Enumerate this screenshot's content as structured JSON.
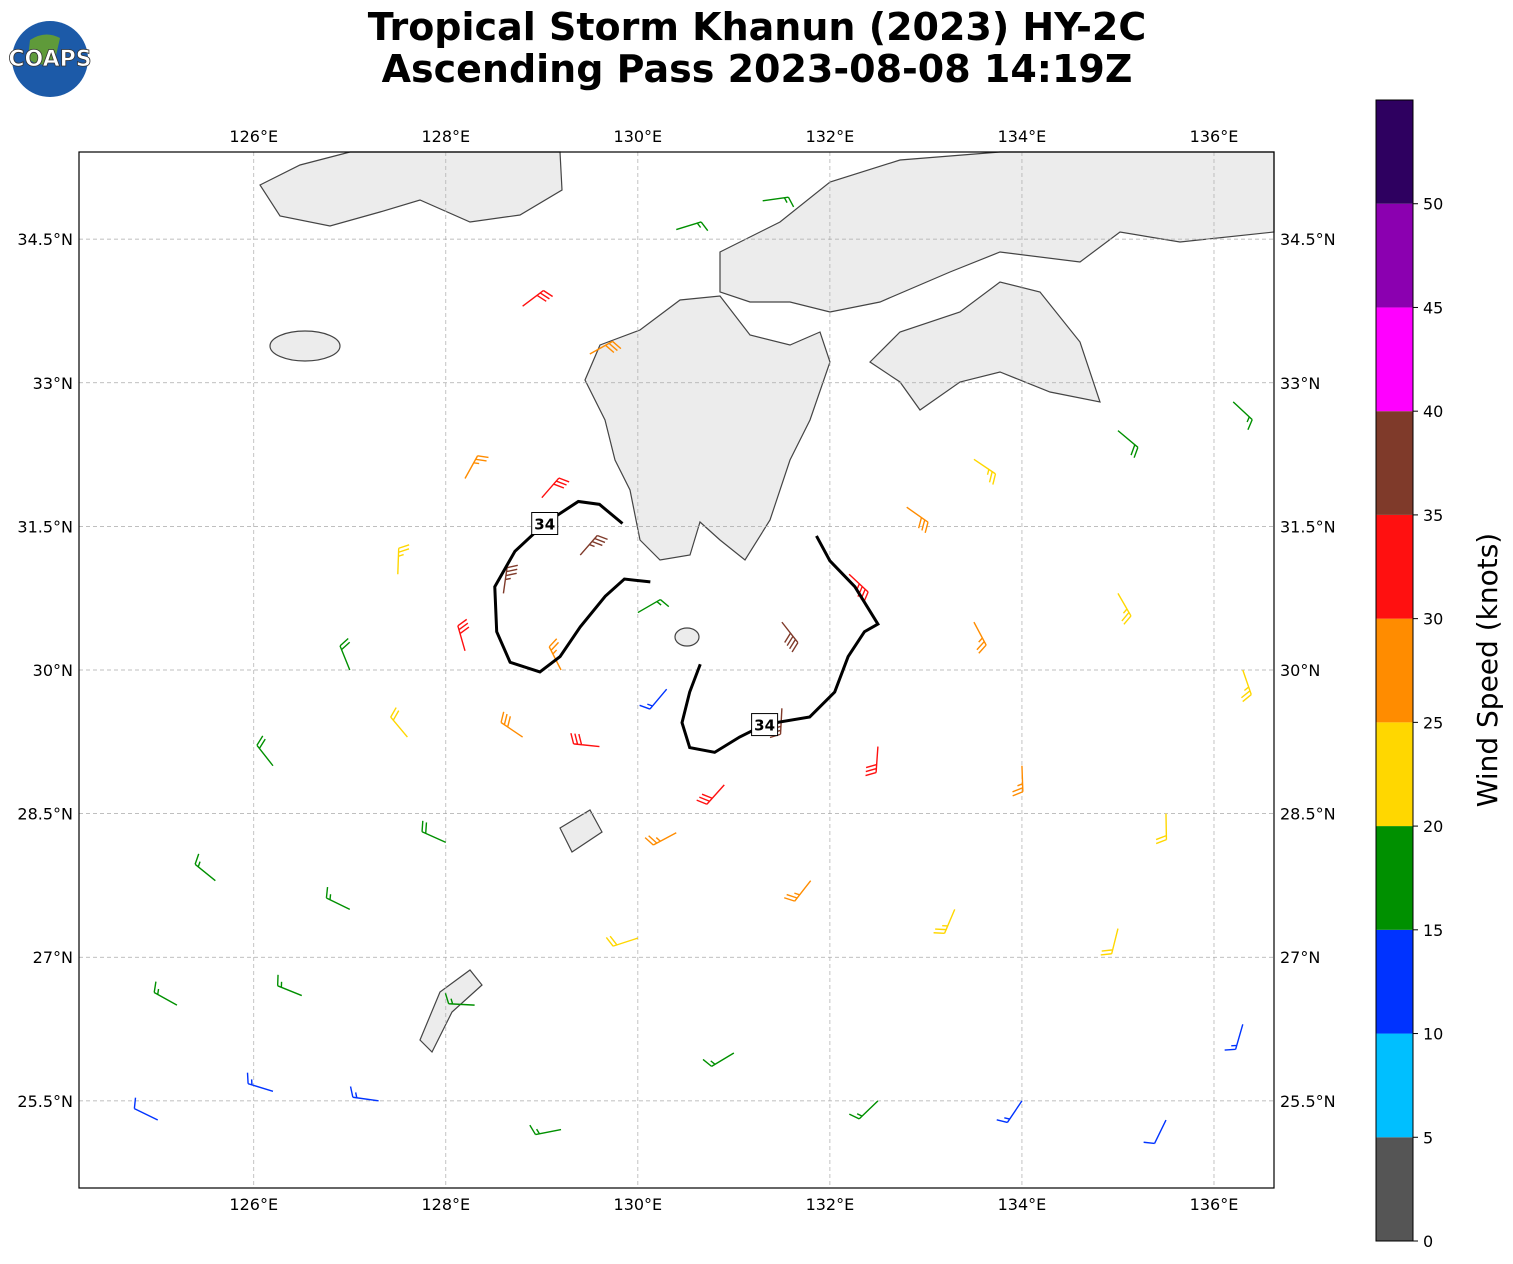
{
  "logo_text": "COAPS",
  "title": [
    "Tropical Storm Khanun (2023) HY-2C",
    "Ascending Pass 2023-08-08 14:19Z"
  ],
  "map": {
    "xlim": [
      124.18,
      136.625
    ],
    "ylim": [
      24.59,
      35.41
    ],
    "xticks": [
      {
        "value": 126,
        "label": "126°E"
      },
      {
        "value": 128,
        "label": "128°E"
      },
      {
        "value": 130,
        "label": "130°E"
      },
      {
        "value": 132,
        "label": "132°E"
      },
      {
        "value": 134,
        "label": "134°E"
      },
      {
        "value": 136,
        "label": "136°E"
      }
    ],
    "yticks": [
      {
        "value": 25.5,
        "label": "25.5°N"
      },
      {
        "value": 27,
        "label": "27°N"
      },
      {
        "value": 28.5,
        "label": "28.5°N"
      },
      {
        "value": 30,
        "label": "30°N"
      },
      {
        "value": 31.5,
        "label": "31.5°N"
      },
      {
        "value": 33,
        "label": "33°N"
      },
      {
        "value": 34.5,
        "label": "34.5°N"
      }
    ],
    "grid": true,
    "barbs": {
      "lon": [
        128.8,
        129.5,
        130.4,
        131.3,
        128.2,
        129.0,
        127.5,
        128.6,
        129.4,
        127.0,
        128.2,
        129.2,
        126.2,
        127.6,
        128.8,
        129.6,
        125.6,
        127.0,
        128.0,
        125.2,
        126.5,
        125.0,
        126.2,
        127.3,
        128.3,
        129.2,
        130.0,
        130.4,
        130.9,
        131.5,
        131.5,
        132.2,
        132.8,
        133.5,
        135.0,
        136.2,
        133.5,
        135.0,
        136.3,
        132.5,
        134.0,
        135.5,
        131.8,
        133.3,
        135.0,
        131.0,
        132.5,
        134.0,
        135.5,
        136.3,
        130.0,
        130.3
      ],
      "lat": [
        33.8,
        33.3,
        34.6,
        34.9,
        32.0,
        31.8,
        31.0,
        30.8,
        31.2,
        30.0,
        30.2,
        30.0,
        29.0,
        29.3,
        29.3,
        29.2,
        27.8,
        27.5,
        28.2,
        26.5,
        26.6,
        25.3,
        25.6,
        25.5,
        26.5,
        25.2,
        27.2,
        28.3,
        28.8,
        29.6,
        30.5,
        31.0,
        31.7,
        32.2,
        32.5,
        32.8,
        30.5,
        30.8,
        30.0,
        29.2,
        29.0,
        28.5,
        27.8,
        27.5,
        27.3,
        26.0,
        25.5,
        25.5,
        25.3,
        26.3,
        30.6,
        29.8
      ],
      "speed": [
        31,
        28,
        17,
        16,
        27,
        32,
        23,
        37,
        37,
        19,
        31,
        27,
        18,
        21,
        29,
        32,
        17,
        16,
        18,
        16,
        17,
        12,
        14,
        13,
        17,
        17,
        22,
        26,
        32,
        37,
        38,
        33,
        28,
        23,
        18,
        17,
        27,
        23,
        23,
        31,
        26,
        22,
        26,
        23,
        20,
        17,
        15,
        13,
        12,
        13,
        16,
        14
      ],
      "direction": [
        53,
        61,
        73,
        82,
        29,
        41,
        2,
        8,
        41,
        338,
        344,
        333,
        322,
        320,
        304,
        276,
        309,
        296,
        294,
        299,
        292,
        296,
        287,
        278,
        273,
        259,
        252,
        242,
        222,
        183,
        142,
        133,
        125,
        124,
        130,
        133,
        152,
        150,
        161,
        184,
        178,
        179,
        218,
        203,
        194,
        239,
        226,
        214,
        206,
        196,
        60,
        220
      ]
    },
    "contours": [
      {
        "level": 34,
        "lon": [
          129.84,
          129.6,
          129.38,
          129.03,
          128.72,
          128.51,
          128.53,
          128.67,
          128.98,
          129.19,
          129.4,
          129.66,
          129.86,
          130.13
        ],
        "lat": [
          31.53,
          31.73,
          31.76,
          31.53,
          31.24,
          30.87,
          30.4,
          30.08,
          29.98,
          30.14,
          30.45,
          30.77,
          30.95,
          30.92
        ]
      },
      {
        "level": 34,
        "lon": [
          131.86,
          132.0,
          132.26,
          132.5,
          132.36,
          132.19,
          132.05,
          131.79,
          131.32,
          131.06,
          130.8,
          130.54,
          130.46,
          130.54,
          130.65
        ],
        "lat": [
          31.4,
          31.14,
          30.87,
          30.48,
          30.4,
          30.14,
          29.77,
          29.51,
          29.43,
          29.3,
          29.14,
          29.19,
          29.45,
          29.77,
          30.06
        ]
      }
    ]
  },
  "colorbar": {
    "label": "Wind Speed (knots)",
    "bounds": [
      0,
      5,
      10,
      15,
      20,
      25,
      30,
      35,
      40,
      45,
      50,
      55
    ],
    "colors": [
      "#555555",
      "#00bfff",
      "#0033ff",
      "#009000",
      "#ffd700",
      "#ff8c00",
      "#ff1010",
      "#7f3a2a",
      "#ff00ff",
      "#8b00b0",
      "#2e0060"
    ],
    "ticks": [
      0,
      5,
      10,
      15,
      20,
      25,
      30,
      35,
      40,
      45,
      50
    ]
  }
}
